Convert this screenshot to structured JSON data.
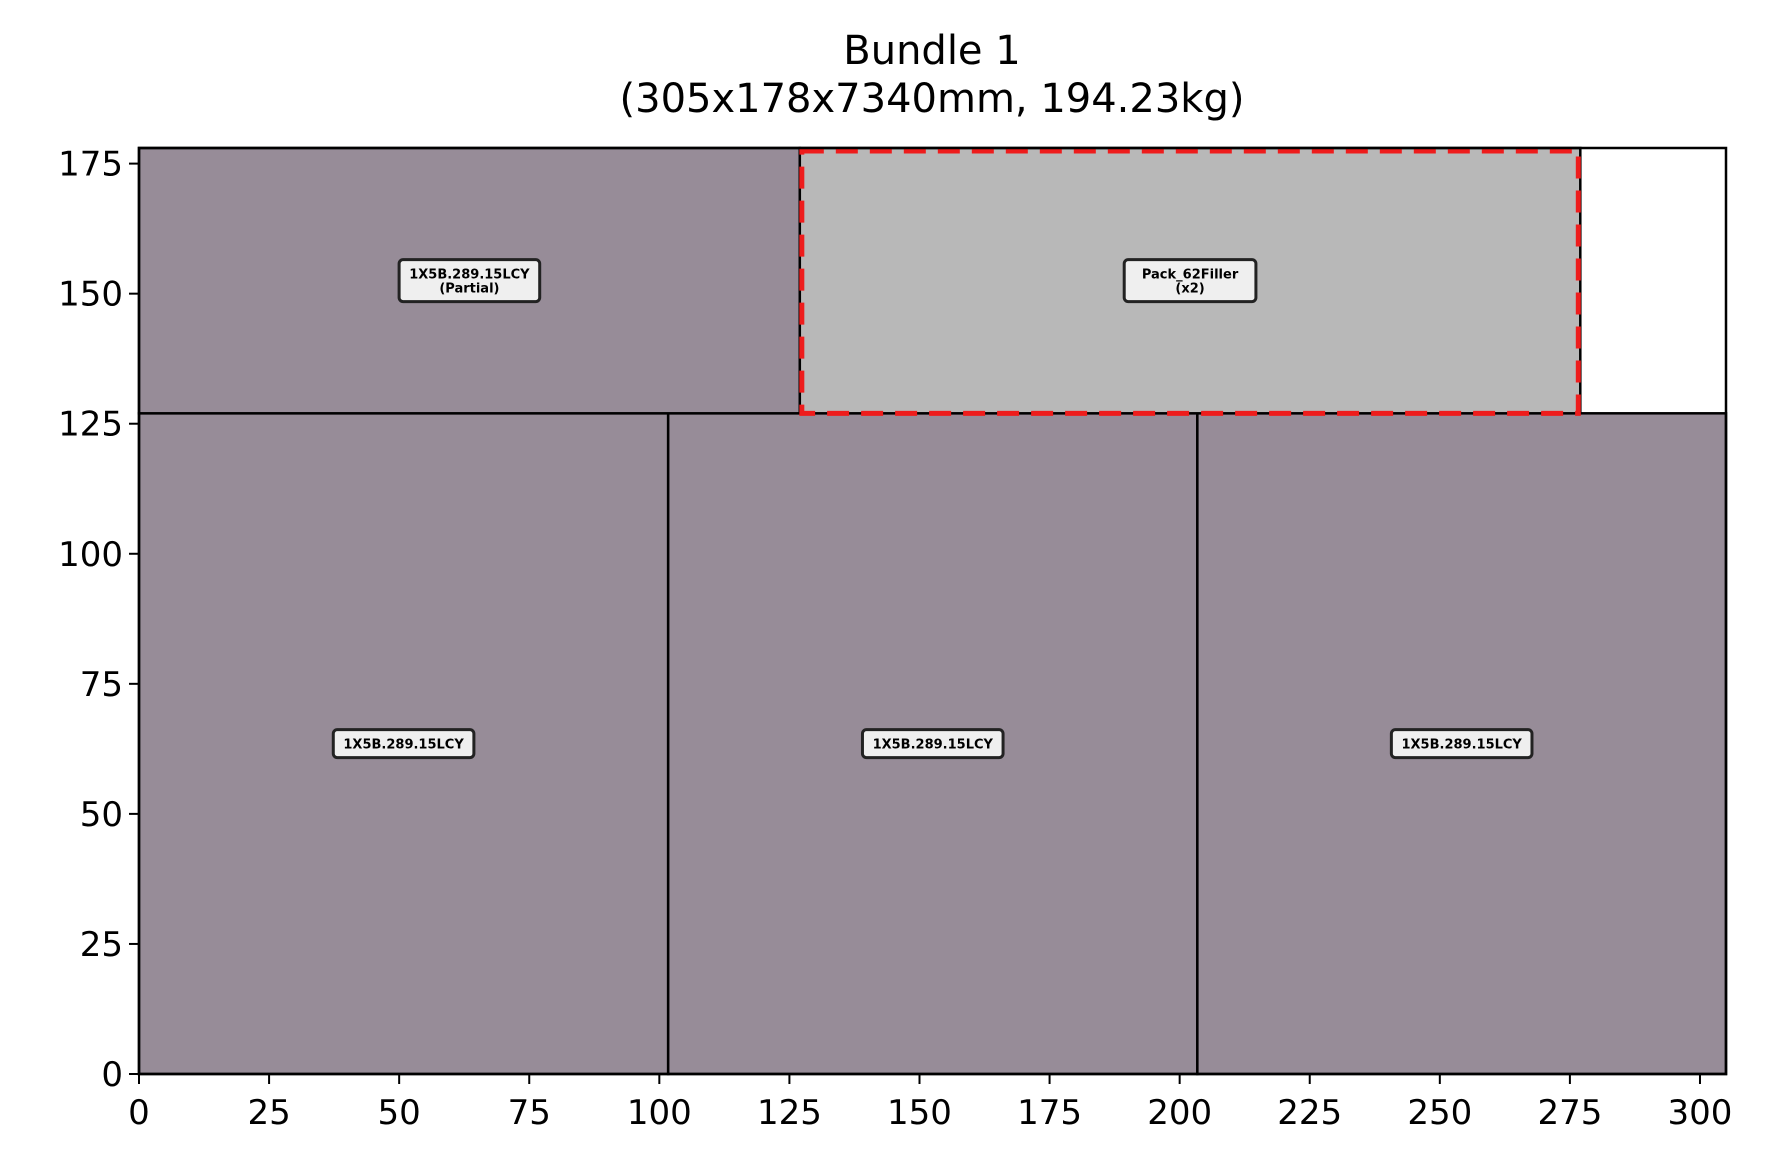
{
  "chart_data": {
    "type": "rect-layout",
    "title": "Bundle 1",
    "subtitle": "(305x178x7340mm, 194.23kg)",
    "xlabel": "",
    "ylabel": "",
    "xlim": [
      0,
      305
    ],
    "ylim": [
      0,
      178
    ],
    "xticks": [
      0,
      25,
      50,
      75,
      100,
      125,
      150,
      175,
      200,
      225,
      250,
      275,
      300
    ],
    "yticks": [
      0,
      25,
      50,
      75,
      100,
      125,
      150,
      175
    ],
    "grid": false,
    "colors": {
      "product_fill": "#978c98",
      "filler_fill": "#b8b8b8",
      "filler_outline": "#ee1c1c",
      "label_bg": "#efefef",
      "edge": "#000000"
    },
    "rects": [
      {
        "x": 0,
        "y": 0,
        "w": 101.7,
        "h": 127,
        "kind": "product",
        "label": "1X5B.289.15LCY"
      },
      {
        "x": 101.7,
        "y": 0,
        "w": 101.7,
        "h": 127,
        "kind": "product",
        "label": "1X5B.289.15LCY"
      },
      {
        "x": 203.4,
        "y": 0,
        "w": 101.6,
        "h": 127,
        "kind": "product",
        "label": "1X5B.289.15LCY"
      },
      {
        "x": 0,
        "y": 127,
        "w": 127,
        "h": 51,
        "kind": "product",
        "label": "1X5B.289.15LCY\n(Partial)"
      },
      {
        "x": 127,
        "y": 127,
        "w": 150,
        "h": 51,
        "kind": "filler",
        "label": "Pack_62Filler\n(x2)"
      }
    ]
  }
}
